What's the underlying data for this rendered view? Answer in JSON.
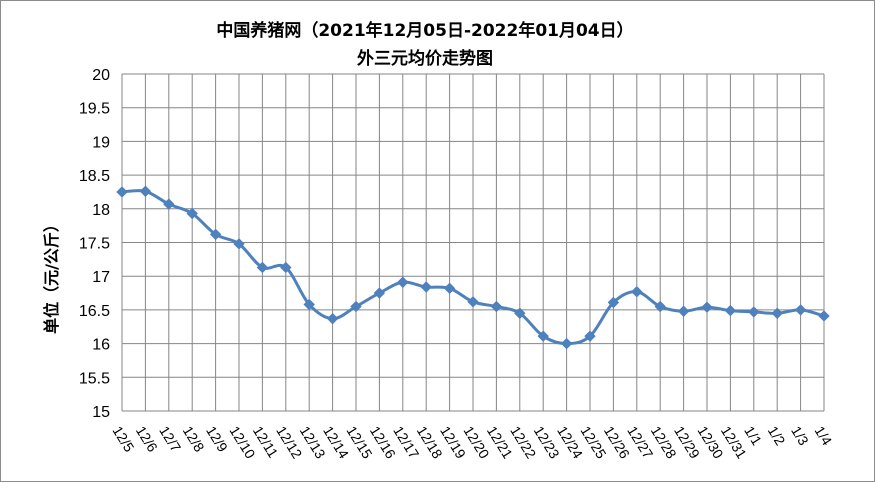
{
  "chart_data": {
    "type": "line",
    "title": "中国养猪网（2021年12月05日-2022年01月04日）",
    "subtitle": "外三元均价走势图",
    "xlabel": "",
    "ylabel": "单位（元/公斤）",
    "ylim": [
      15,
      20
    ],
    "ytick_step": 0.5,
    "ytick_labels": [
      "15",
      "15.5",
      "16",
      "16.5",
      "17",
      "17.5",
      "18",
      "18.5",
      "19",
      "19.5",
      "20"
    ],
    "grid": true,
    "legend": "none",
    "line_color": "#4f81bd",
    "categories": [
      "12/5",
      "12/6",
      "12/7",
      "12/8",
      "12/9",
      "12/10",
      "12/11",
      "12/12",
      "12/13",
      "12/14",
      "12/15",
      "12/16",
      "12/17",
      "12/18",
      "12/19",
      "12/20",
      "12/21",
      "12/22",
      "12/23",
      "12/24",
      "12/25",
      "12/26",
      "12/27",
      "12/28",
      "12/29",
      "12/30",
      "12/31",
      "1/1",
      "1/2",
      "1/3",
      "1/4"
    ],
    "values": [
      18.25,
      18.26,
      18.07,
      17.93,
      17.62,
      17.48,
      17.13,
      17.13,
      16.58,
      16.37,
      16.55,
      16.75,
      16.91,
      16.84,
      16.82,
      16.62,
      16.55,
      16.45,
      16.11,
      16.0,
      16.11,
      16.61,
      16.77,
      16.55,
      16.48,
      16.54,
      16.49,
      16.47,
      16.45,
      16.5,
      16.41
    ]
  }
}
